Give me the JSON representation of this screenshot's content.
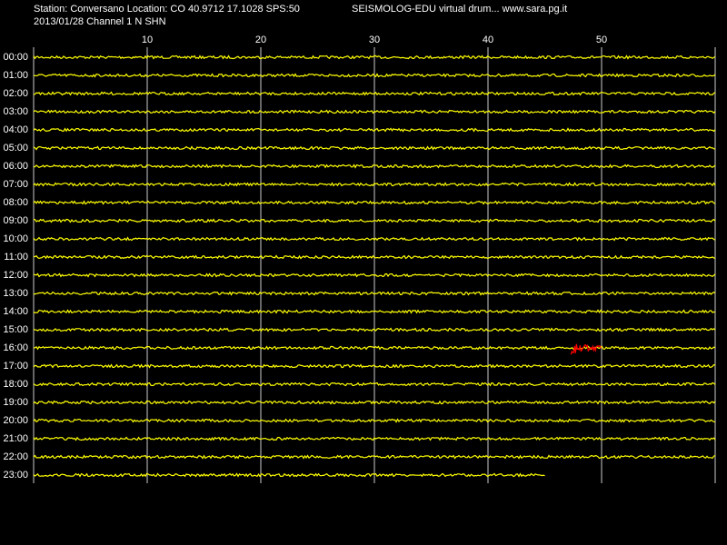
{
  "header": {
    "station": "Station: Conversano Location: CO 40.9712 17.1028 SPS:50",
    "program": "SEISMOLOG-EDU virtual drum... www.sara.pg.it",
    "date_channel": "2013/01/28  Channel 1 N SHN"
  },
  "axis": {
    "xlim": [
      0,
      60
    ],
    "xticks": [
      10,
      20,
      30,
      40,
      50
    ]
  },
  "rows": [
    "00:00",
    "01:00",
    "02:00",
    "03:00",
    "04:00",
    "05:00",
    "06:00",
    "07:00",
    "08:00",
    "09:00",
    "10:00",
    "11:00",
    "12:00",
    "13:00",
    "14:00",
    "15:00",
    "16:00",
    "17:00",
    "18:00",
    "19:00",
    "20:00",
    "21:00",
    "22:00",
    "23:00"
  ],
  "trace_color": "#ffff00",
  "last_trace_end": 45,
  "event": {
    "row": "16:00",
    "start": 47.3,
    "end": 50,
    "color": "#ff0000"
  }
}
